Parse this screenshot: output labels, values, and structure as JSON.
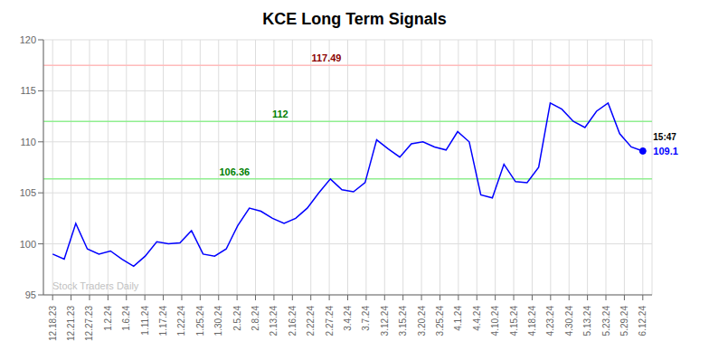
{
  "chart_data": {
    "type": "line",
    "title": "KCE Long Term Signals",
    "x": [
      0,
      1,
      2,
      3,
      4,
      5,
      6,
      7,
      8,
      9,
      10,
      11,
      12,
      13,
      14,
      15,
      16,
      17,
      18,
      19,
      20,
      21,
      22,
      23,
      24,
      25,
      26,
      27,
      28,
      29,
      30,
      31,
      32,
      33,
      34,
      35,
      36,
      37,
      38,
      39,
      40,
      41,
      42,
      43,
      44,
      45,
      46,
      47,
      48,
      49,
      50,
      51
    ],
    "values": [
      99.0,
      98.5,
      102.0,
      99.5,
      99.0,
      99.3,
      98.5,
      97.8,
      98.8,
      100.2,
      100.0,
      100.1,
      101.3,
      99.0,
      98.8,
      99.5,
      101.8,
      103.5,
      103.2,
      102.5,
      102.0,
      102.5,
      103.5,
      105.0,
      106.36,
      105.3,
      105.1,
      106.0,
      110.2,
      109.3,
      108.5,
      109.8,
      110.0,
      109.5,
      109.2,
      111.0,
      110.0,
      104.8,
      104.5,
      107.8,
      106.1,
      106.0,
      107.5,
      113.8,
      113.2,
      112.0,
      111.4,
      113.0,
      113.8,
      110.8,
      109.5,
      109.1
    ],
    "color": "blue",
    "xlim": [
      -0.796875,
      51.796875
    ],
    "xticks": [
      {
        "value": 0,
        "label": "12.18.23"
      },
      {
        "value": 1.59375,
        "label": "12.21.23"
      },
      {
        "value": 3.1875,
        "label": "12.27.23"
      },
      {
        "value": 4.78125,
        "label": "1.2.24"
      },
      {
        "value": 6.375,
        "label": "1.6.24"
      },
      {
        "value": 7.96875,
        "label": "1.11.24"
      },
      {
        "value": 9.5625,
        "label": "1.17.24"
      },
      {
        "value": 11.15625,
        "label": "1.22.24"
      },
      {
        "value": 12.75,
        "label": "1.25.24"
      },
      {
        "value": 14.34375,
        "label": "1.30.24"
      },
      {
        "value": 15.9375,
        "label": "2.5.24"
      },
      {
        "value": 17.53125,
        "label": "2.8.24"
      },
      {
        "value": 19.125,
        "label": "2.13.24"
      },
      {
        "value": 20.71875,
        "label": "2.16.24"
      },
      {
        "value": 22.3125,
        "label": "2.22.24"
      },
      {
        "value": 23.90625,
        "label": "2.27.24"
      },
      {
        "value": 25.5,
        "label": "3.4.24"
      },
      {
        "value": 27.09375,
        "label": "3.7.24"
      },
      {
        "value": 28.6875,
        "label": "3.12.24"
      },
      {
        "value": 30.28125,
        "label": "3.15.24"
      },
      {
        "value": 31.875,
        "label": "3.20.24"
      },
      {
        "value": 33.46875,
        "label": "3.25.24"
      },
      {
        "value": 35.0625,
        "label": "4.1.24"
      },
      {
        "value": 36.65625,
        "label": "4.4.24"
      },
      {
        "value": 38.25,
        "label": "4.10.24"
      },
      {
        "value": 39.84375,
        "label": "4.15.24"
      },
      {
        "value": 41.4375,
        "label": "4.18.24"
      },
      {
        "value": 43.03125,
        "label": "4.23.24"
      },
      {
        "value": 44.625,
        "label": "4.30.24"
      },
      {
        "value": 46.21875,
        "label": "5.13.24"
      },
      {
        "value": 47.8125,
        "label": "5.23.24"
      },
      {
        "value": 49.40625,
        "label": "5.29.24"
      },
      {
        "value": 51,
        "label": "6.12.24"
      }
    ],
    "ylim": [
      95,
      120
    ],
    "yticks": [
      95,
      100,
      105,
      110,
      115,
      120
    ],
    "grid": true,
    "reference_lines": [
      {
        "y": 117.49,
        "color": "#ffbbbb",
        "label": "117.49",
        "label_color": "darkred"
      },
      {
        "y": 112.0,
        "color": "#90ee90",
        "label": "112",
        "label_color": "green"
      },
      {
        "y": 106.36,
        "color": "#90ee90",
        "label": "106.36",
        "label_color": "green"
      }
    ],
    "annotations": [
      {
        "text": "15:47",
        "color": "black"
      },
      {
        "text": "109.1",
        "color": "blue"
      },
      {
        "text": "Stock Traders Daily",
        "color": "#bbbbbb"
      }
    ]
  }
}
